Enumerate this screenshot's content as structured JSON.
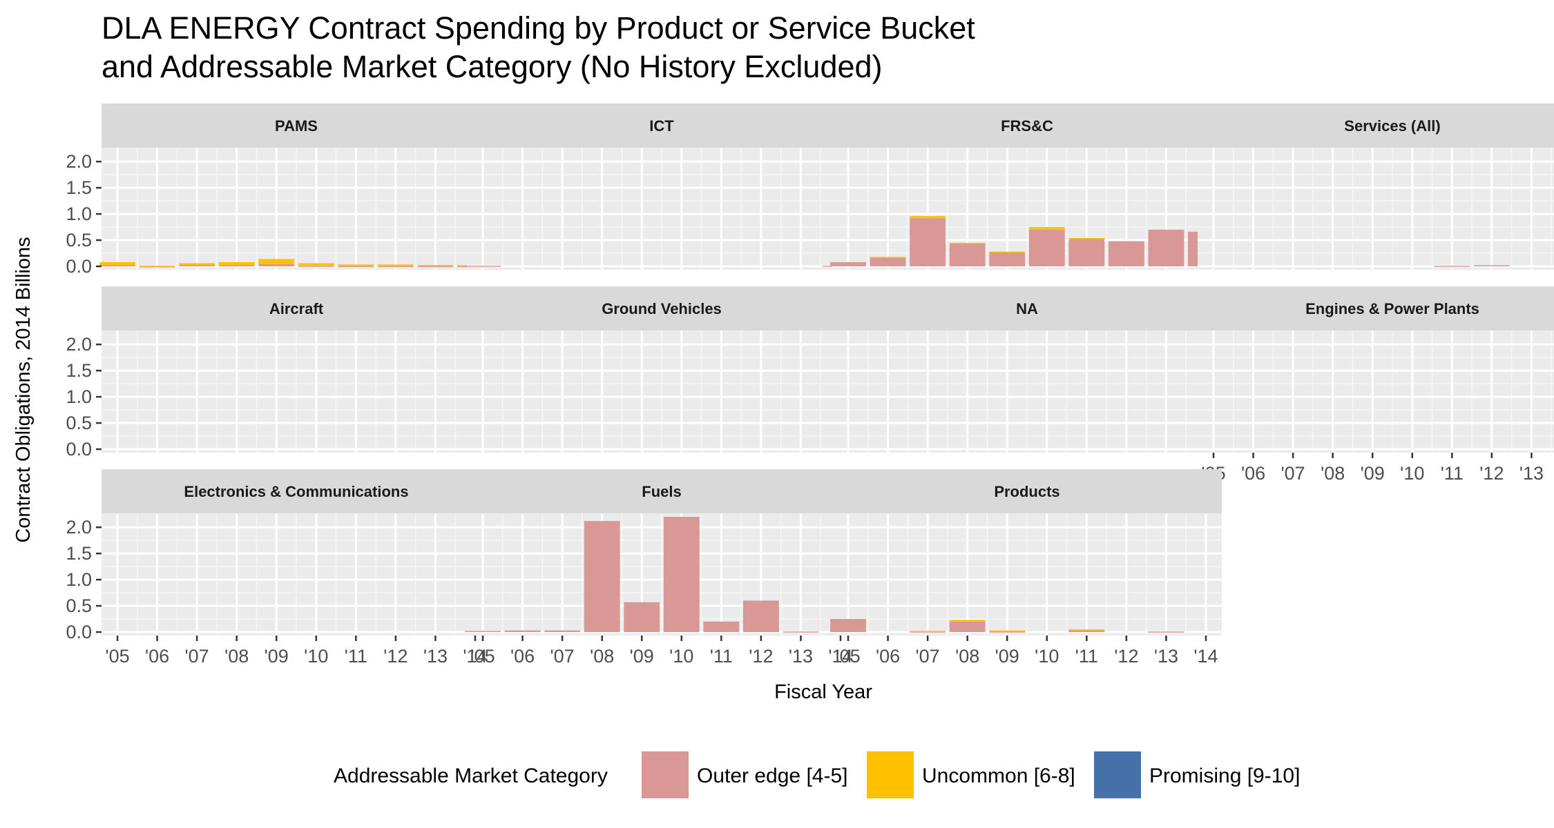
{
  "chart_data": {
    "type": "bar",
    "stacked": true,
    "title": "DLA ENERGY Contract Spending by Product or Service Bucket\nand Addressable Market Category (No History Excluded)",
    "xlabel": "Fiscal Year",
    "ylabel": "Contract Obligations, 2014 Billions",
    "ylim": [
      0,
      2.2
    ],
    "yticks": [
      "0.0",
      "0.5",
      "1.0",
      "1.5",
      "2.0"
    ],
    "xticks": [
      "'05",
      "'06",
      "'07",
      "'08",
      "'09",
      "'10",
      "'11",
      "'12",
      "'13",
      "'14"
    ],
    "legend": {
      "title": "Addressable Market Category",
      "position": "bottom",
      "entries": [
        {
          "name": "Outer edge [4-5]",
          "color": "#d99795"
        },
        {
          "name": "Uncommon [6-8]",
          "color": "#ffc000"
        },
        {
          "name": "Promising [9-10]",
          "color": "#4471a7"
        }
      ]
    },
    "facets": [
      {
        "label": "PAMS",
        "show_x": false,
        "outer": [
          0.02,
          0.01,
          0.02,
          0.02,
          0.04,
          0.01,
          0.005,
          0.005,
          0.005,
          0.005
        ],
        "uncommon": [
          0.06,
          -0.02,
          0.04,
          0.06,
          0.1,
          0.05,
          0.03,
          0.03,
          0.02,
          0.015
        ],
        "promising": [
          0,
          0,
          0,
          0,
          0,
          0,
          0,
          0,
          0,
          0
        ]
      },
      {
        "label": "ICT",
        "show_x": false,
        "outer": [
          0.01,
          0,
          0,
          0,
          0,
          0,
          0,
          0,
          0,
          0.01
        ],
        "uncommon": [
          0,
          0,
          0,
          0,
          0,
          0,
          0,
          0,
          0,
          0
        ],
        "promising": [
          0,
          0,
          0,
          0,
          0,
          0,
          0,
          0,
          0,
          0
        ]
      },
      {
        "label": "FRS&C",
        "show_x": false,
        "outer": [
          0.08,
          0.17,
          0.92,
          0.44,
          0.27,
          0.7,
          0.53,
          0.48,
          0.7,
          0.66
        ],
        "uncommon": [
          0,
          0.01,
          0.04,
          0.01,
          0.01,
          0.05,
          0.01,
          0,
          0,
          0
        ],
        "promising": [
          0,
          0,
          0,
          0,
          0,
          0,
          0,
          0,
          0,
          0
        ]
      },
      {
        "label": "Services (All)",
        "show_x": false,
        "outer": [
          0,
          0,
          0,
          0,
          0,
          0,
          0.01,
          0.02,
          0,
          0
        ],
        "uncommon": [
          0,
          0,
          0,
          0,
          0,
          0,
          0,
          0,
          0,
          0
        ],
        "promising": [
          0,
          0,
          0,
          0,
          0,
          0,
          0,
          0,
          0,
          0
        ]
      },
      {
        "label": "Aircraft",
        "show_x": false,
        "outer": [
          0,
          0,
          0,
          0,
          0,
          0,
          0,
          0,
          0,
          0
        ],
        "uncommon": [
          0,
          0,
          0,
          0,
          0,
          0,
          0,
          0,
          0,
          0
        ],
        "promising": [
          0,
          0,
          0,
          0,
          0,
          0,
          0,
          0,
          0,
          0
        ]
      },
      {
        "label": "Ground Vehicles",
        "show_x": false,
        "outer": [
          0,
          0,
          0,
          0,
          0,
          0,
          0,
          0,
          0,
          0
        ],
        "uncommon": [
          0,
          0,
          0,
          0,
          0,
          0,
          0,
          0,
          0,
          0
        ],
        "promising": [
          0,
          0,
          0,
          0,
          0,
          0,
          0,
          0,
          0,
          0
        ]
      },
      {
        "label": "NA",
        "show_x": false,
        "outer": [
          0,
          0,
          0,
          0,
          0,
          0,
          0,
          0,
          0,
          0
        ],
        "uncommon": [
          0,
          0,
          0,
          0,
          0,
          0,
          0,
          0,
          0,
          0
        ],
        "promising": [
          0,
          0,
          0,
          0,
          0,
          0,
          0,
          0,
          0,
          0
        ]
      },
      {
        "label": "Engines & Power Plants",
        "show_x": true,
        "outer": [
          0,
          0,
          0,
          0,
          0,
          0,
          0,
          0,
          0,
          0
        ],
        "uncommon": [
          0,
          0,
          0,
          0,
          0,
          0,
          0,
          0,
          0,
          0
        ],
        "promising": [
          0,
          0,
          0,
          0,
          0,
          0,
          0,
          0,
          0,
          0
        ]
      },
      {
        "label": "Electronics & Communications",
        "show_x": true,
        "outer": [
          0,
          0,
          0,
          0,
          0,
          0,
          0,
          0,
          0,
          0
        ],
        "uncommon": [
          0,
          0,
          0,
          0,
          0,
          0,
          0,
          0,
          0,
          0
        ],
        "promising": [
          0,
          0,
          0,
          0,
          0,
          0,
          0,
          0,
          0,
          0
        ]
      },
      {
        "label": "Fuels",
        "show_x": true,
        "outer": [
          0.02,
          0.03,
          0.03,
          2.12,
          0.57,
          2.2,
          0.2,
          0.6,
          0.01,
          0
        ],
        "uncommon": [
          0,
          0,
          0,
          0,
          0,
          0,
          0,
          0,
          0,
          0
        ],
        "promising": [
          0,
          0,
          0,
          0,
          0,
          0,
          0,
          0,
          0,
          0
        ]
      },
      {
        "label": "Products",
        "show_x": true,
        "outer": [
          0.25,
          0,
          0.01,
          0.2,
          0.01,
          0,
          0.04,
          0,
          0.01,
          0
        ],
        "uncommon": [
          0,
          0,
          0.01,
          0.03,
          0.02,
          0,
          0.01,
          0,
          0,
          0
        ],
        "promising": [
          0,
          0,
          0,
          0,
          0,
          0,
          0,
          0,
          0,
          0
        ]
      }
    ]
  }
}
